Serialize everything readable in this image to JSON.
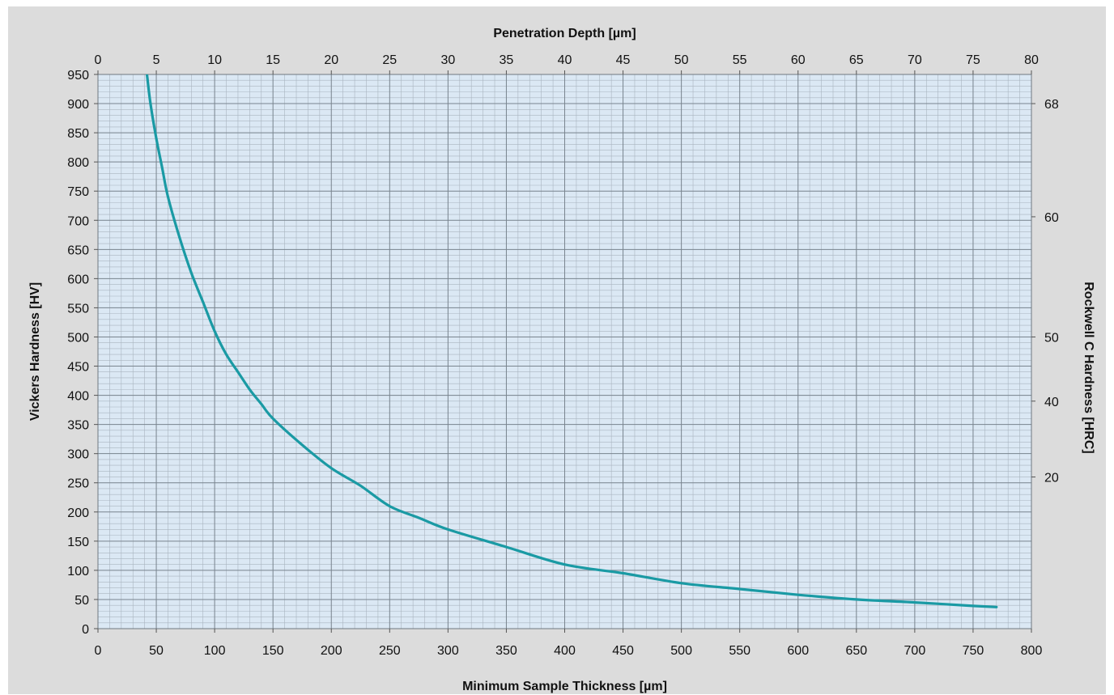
{
  "chart_data": {
    "type": "line",
    "title": "",
    "top_axis": {
      "label": "Penetration Depth [µm]",
      "range": [
        0,
        80
      ],
      "ticks": [
        0,
        5,
        10,
        15,
        20,
        25,
        30,
        35,
        40,
        45,
        50,
        55,
        60,
        65,
        70,
        75,
        80
      ]
    },
    "bottom_axis": {
      "label": "Minimum Sample Thickness [µm]",
      "range": [
        0,
        800
      ],
      "ticks": [
        0,
        50,
        100,
        150,
        200,
        250,
        300,
        350,
        400,
        450,
        500,
        550,
        600,
        650,
        700,
        750,
        800
      ]
    },
    "left_axis": {
      "label": "Vickers Hardness [HV]",
      "range": [
        0,
        950
      ],
      "ticks": [
        0,
        50,
        100,
        150,
        200,
        250,
        300,
        350,
        400,
        450,
        500,
        550,
        600,
        650,
        700,
        750,
        800,
        850,
        900,
        950
      ]
    },
    "right_axis": {
      "label": "Rockwell C Hardness [HRC]",
      "ticks": [
        {
          "label": "68",
          "hv": 900
        },
        {
          "label": "60",
          "hv": 706
        },
        {
          "label": "50",
          "hv": 500
        },
        {
          "label": "40",
          "hv": 390
        },
        {
          "label": "20",
          "hv": 260
        }
      ]
    },
    "grid": true,
    "grid_minor": true,
    "series": [
      {
        "color": "#1a9aa4",
        "x": [
          42,
          45,
          50,
          55,
          60,
          70,
          80,
          90,
          100,
          110,
          120,
          130,
          140,
          150,
          175,
          200,
          225,
          250,
          275,
          300,
          350,
          400,
          450,
          500,
          550,
          600,
          650,
          700,
          750,
          770
        ],
        "y": [
          950,
          900,
          840,
          790,
          740,
          670,
          610,
          560,
          510,
          470,
          440,
          410,
          385,
          360,
          315,
          275,
          245,
          210,
          190,
          170,
          140,
          110,
          95,
          78,
          68,
          58,
          50,
          45,
          39,
          37
        ]
      }
    ]
  }
}
